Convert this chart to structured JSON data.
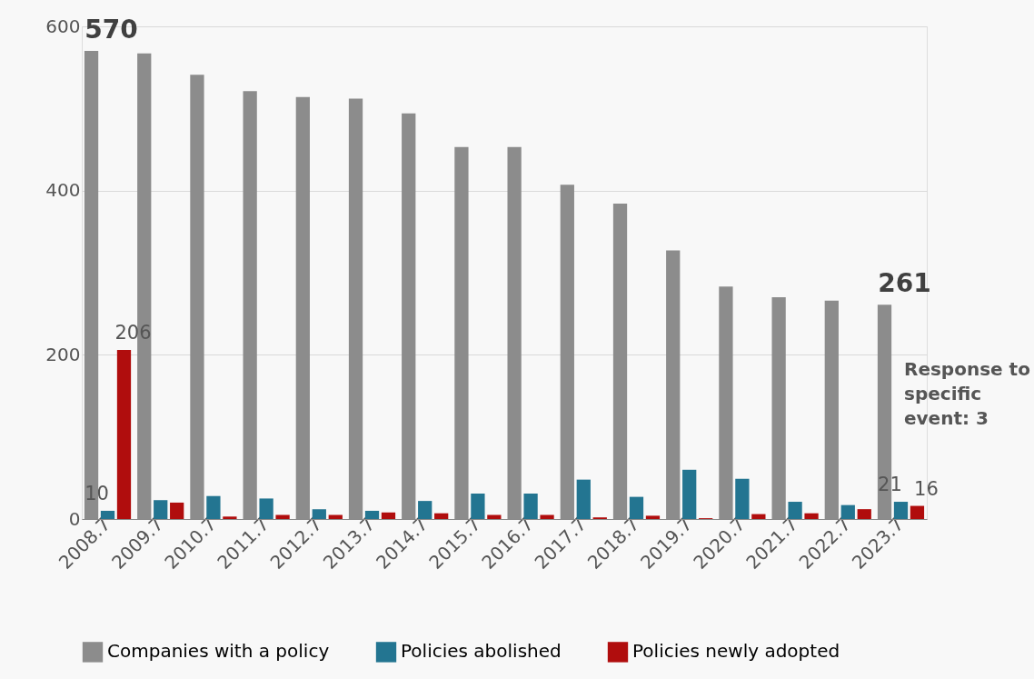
{
  "chart_data": {
    "type": "bar",
    "categories": [
      "2008.7",
      "2009.7",
      "2010.7",
      "2011.7",
      "2012.7",
      "2013.7",
      "2014.7",
      "2015.7",
      "2016.7",
      "2017.7",
      "2018.7",
      "2019.7",
      "2020.7",
      "2021.7",
      "2022.7",
      "2023.7"
    ],
    "series": [
      {
        "name": "Companies with a policy",
        "color": "#8c8c8c",
        "values": [
          570,
          567,
          541,
          521,
          514,
          512,
          494,
          453,
          453,
          407,
          384,
          327,
          283,
          270,
          266,
          261
        ],
        "value_labels": [
          "570",
          null,
          null,
          null,
          null,
          null,
          null,
          null,
          null,
          null,
          null,
          null,
          null,
          null,
          null,
          "261"
        ]
      },
      {
        "name": "Policies abolished",
        "color": "#237591",
        "values": [
          10,
          23,
          28,
          25,
          12,
          10,
          22,
          31,
          31,
          48,
          27,
          60,
          49,
          21,
          17,
          21
        ],
        "value_labels": [
          "10",
          null,
          null,
          null,
          null,
          null,
          null,
          null,
          null,
          null,
          null,
          null,
          null,
          null,
          null,
          "21"
        ]
      },
      {
        "name": "Policies newly adopted",
        "color": "#b00d0d",
        "values": [
          206,
          20,
          3,
          5,
          5,
          8,
          7,
          5,
          5,
          2,
          4,
          1,
          6,
          7,
          12,
          16
        ],
        "value_labels": [
          "206",
          null,
          null,
          null,
          null,
          null,
          null,
          null,
          null,
          null,
          null,
          null,
          null,
          null,
          null,
          "16"
        ]
      }
    ],
    "ylim": [
      0,
      600
    ],
    "yticks": [
      0,
      200,
      400,
      600
    ],
    "grid": "y",
    "legend": "bottom",
    "annotations": [
      "Response to specific event: 3"
    ]
  }
}
